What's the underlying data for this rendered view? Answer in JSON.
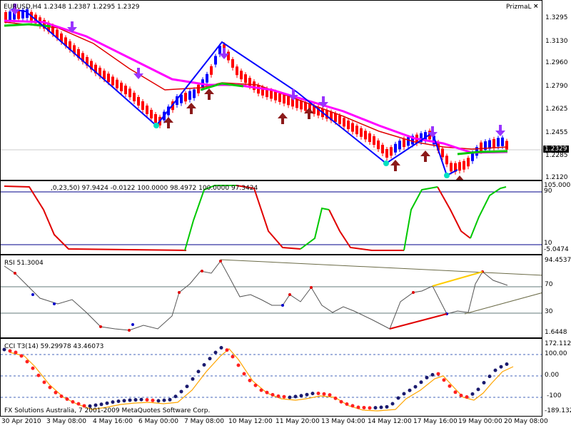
{
  "symbol_header": "EURUSD,H4  1.2348 1.2387 1.2295 1.2329",
  "window_label": "PrizmaL",
  "close_glyph": "×",
  "main": {
    "price_ticks": [
      "1.3295",
      "1.3130",
      "1.2960",
      "1.2790",
      "1.2625",
      "1.2455",
      "1.2285",
      "1.2120"
    ],
    "current_price": "1.2329",
    "colors": {
      "bull": "#0000ff",
      "bear": "#ff0000",
      "ma_slow": "#ff00ff",
      "ma_fast": "#00c800",
      "ma_red": "#e00000",
      "zigzag": "#0000ff",
      "up_arrow": "#8b1a1a",
      "down_arrow": "#9933ff",
      "pivot": "#00e0c0"
    }
  },
  "ind1": {
    "label": ",0,23,50) 97.9424 -0.0122 100.0000 98.4972 100.0000 97.3424",
    "scale": [
      "105.0008",
      "90",
      "10",
      "-5.0474"
    ]
  },
  "rsi": {
    "label": "RSI 51.3004",
    "scale": [
      "94.4537",
      "70",
      "30",
      "1.6448"
    ]
  },
  "cci": {
    "label": "CCI T3(14) 59.29978 43.46073",
    "scale": [
      "172.1121",
      "100.00",
      "0.00",
      "-100",
      "-189.132"
    ],
    "copyright": "FX Solutions Australia, 7 2001-2009 MetaQuotes Software Corp."
  },
  "time_labels": [
    "30 Apr 2010",
    "3 May 08:00",
    "4 May 16:00",
    "6 May 00:00",
    "7 May 08:00",
    "10 May 12:00",
    "11 May 20:00",
    "13 May 04:00",
    "14 May 12:00",
    "17 May 16:00",
    "19 May 00:00",
    "20 May 08:00"
  ]
}
